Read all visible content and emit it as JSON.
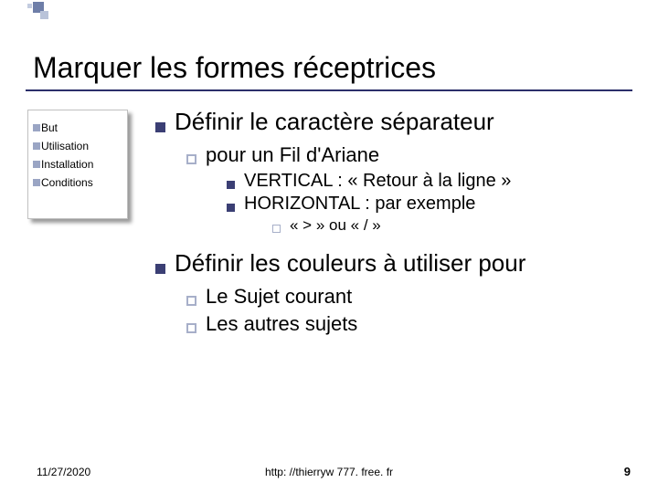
{
  "colors": {
    "rule": "#2b2f6a",
    "bullet_solid": "#3b3f74",
    "bullet_hollow_border": "#a7afc9",
    "sidebar_border": "#c0c0c0",
    "sidebar_shadow": "#9a9a9a",
    "mini_sq": "#9aa5c4"
  },
  "header": {
    "title": "Marquer les formes réceptrices"
  },
  "sidebar": {
    "items": [
      "But",
      "Utilisation",
      "Installation",
      "Conditions"
    ]
  },
  "content": {
    "sec1": {
      "title": "Définir le caractère séparateur",
      "sub1": {
        "text": "pour un Fil d'Ariane",
        "pt1": "VERTICAL : « Retour à la ligne »",
        "pt2": "HORIZONTAL : par exemple",
        "pt2a": "« > » ou «  / »"
      }
    },
    "sec2": {
      "title": "Définir les couleurs à utiliser pour",
      "sub1": "Le Sujet courant",
      "sub2": "Les autres sujets"
    }
  },
  "footer": {
    "date": "11/27/2020",
    "url": "http: //thierryw 777. free. fr",
    "page": "9"
  }
}
